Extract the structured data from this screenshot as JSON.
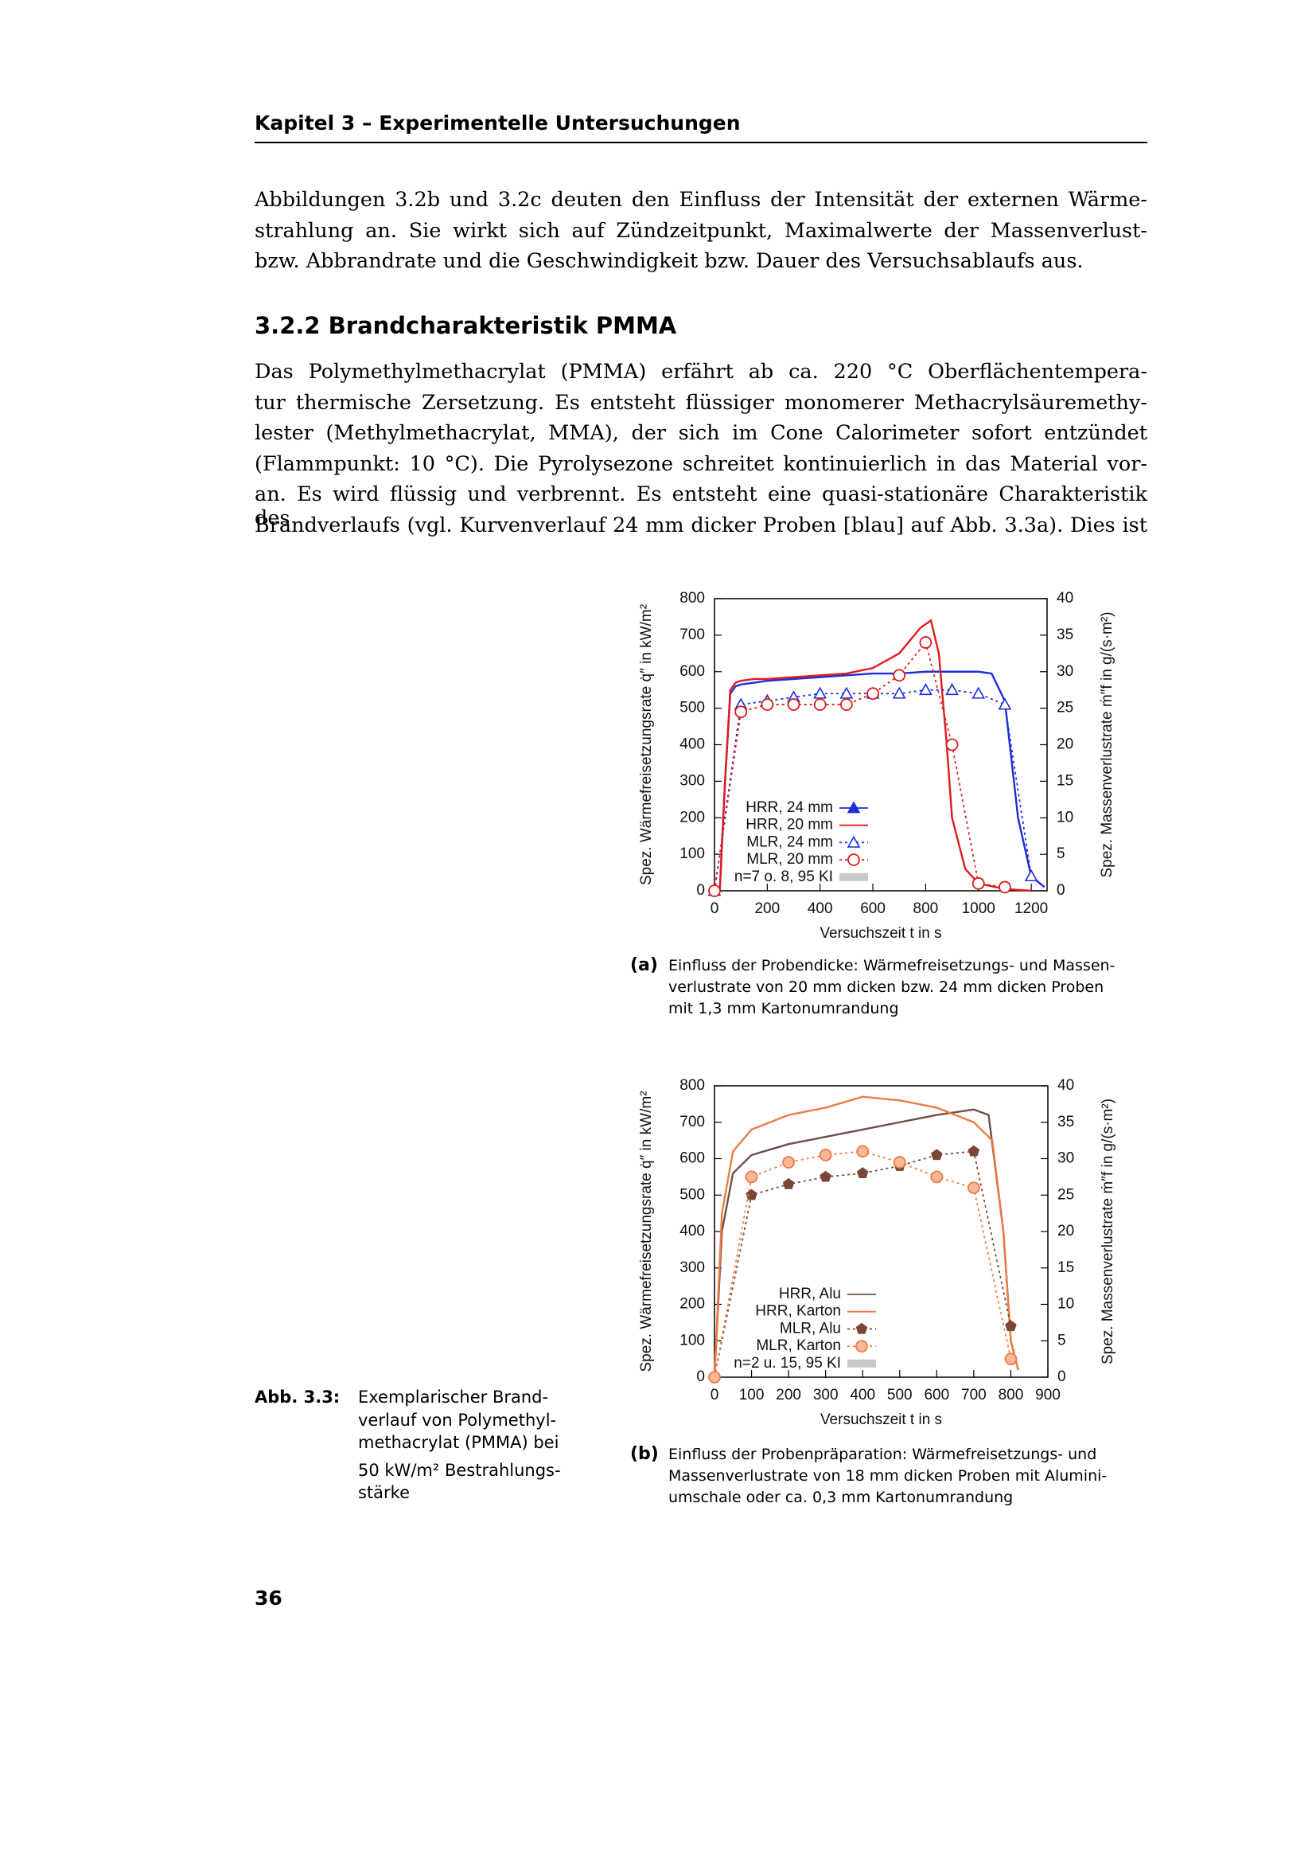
{
  "header": {
    "title": "Kapitel 3 – Experimentelle Untersuchungen"
  },
  "paragraph_1": [
    "Abbildungen 3.2b und 3.2c deuten den Einfluss der Intensität der externen Wärme-",
    "strahlung an. Sie wirkt sich auf Zündzeitpunkt, Maximalwerte der Massenverlust-",
    "bzw. Abbrandrate und die Geschwindigkeit bzw. Dauer des Versuchsablaufs aus."
  ],
  "section": {
    "title": "3.2.2 Brandcharakteristik PMMA"
  },
  "paragraph_2": [
    "Das Polymethylmethacrylat (PMMA) erfährt ab ca. 220 °C Oberflächentempera-",
    "tur thermische Zersetzung. Es entsteht flüssiger monomerer Methacrylsäuremethy-",
    "lester (Methylmethacrylat, MMA), der sich im Cone Calorimeter sofort entzündet",
    "(Flammpunkt: 10 °C). Die Pyrolysezone schreitet kontinuierlich in das Material vor-",
    "an. Es wird flüssig und verbrennt. Es entsteht eine quasi-stationäre Charakteristik des",
    "Brandverlaufs (vgl. Kurvenverlauf 24 mm dicker Proben [blau] auf Abb. 3.3a). Dies ist"
  ],
  "chart_data": [
    {
      "type": "line",
      "y_label": "Spez. Wärmefreisetzungsrate q̇″ in kW/m²",
      "y2_label": "Spez. Massenverlustrate ṁ″f in g/(s·m²)",
      "x_label": "Versuchszeit t in s",
      "xlim": [
        0,
        1260
      ],
      "xticks": [
        0,
        200,
        400,
        600,
        800,
        1000,
        1200
      ],
      "ylim": [
        0,
        800
      ],
      "yticks": [
        0,
        100,
        200,
        300,
        400,
        500,
        600,
        700,
        800
      ],
      "y2lim": [
        0,
        40
      ],
      "y2ticks": [
        0,
        5,
        10,
        15,
        20,
        25,
        30,
        35,
        40
      ],
      "legend": "lower left",
      "ci_label": "n=7 o. 8, 95 KI",
      "ci_color": "#c8c8c8",
      "series": [
        {
          "name": "HRR, 24 mm",
          "color": "#1a2ed8",
          "line_style": "solid",
          "marker": "triangle-filled",
          "legend_marker": true,
          "x": [
            0,
            20,
            40,
            60,
            80,
            100,
            150,
            200,
            300,
            400,
            500,
            600,
            700,
            800,
            900,
            1000,
            1050,
            1100,
            1150,
            1200,
            1250
          ],
          "values": [
            0,
            0,
            300,
            540,
            560,
            565,
            570,
            575,
            580,
            585,
            590,
            595,
            595,
            600,
            600,
            600,
            595,
            520,
            200,
            40,
            10
          ]
        },
        {
          "name": "HRR, 20 mm",
          "color": "#e01b1b",
          "line_style": "solid",
          "marker": "none",
          "x": [
            0,
            20,
            40,
            60,
            80,
            100,
            150,
            200,
            300,
            400,
            500,
            600,
            700,
            780,
            820,
            850,
            880,
            900,
            950,
            1000,
            1100,
            1200
          ],
          "values": [
            0,
            0,
            300,
            550,
            570,
            575,
            580,
            580,
            585,
            590,
            595,
            610,
            650,
            720,
            740,
            650,
            400,
            200,
            60,
            20,
            5,
            0
          ]
        },
        {
          "name": "MLR, 24 mm",
          "color": "#1a2ed8",
          "axis": "y2",
          "line_style": "dotted",
          "marker": "triangle-open",
          "x": [
            0,
            100,
            200,
            300,
            400,
            500,
            600,
            700,
            800,
            900,
            1000,
            1100,
            1200
          ],
          "values": [
            0,
            25.5,
            26,
            26.5,
            27,
            27,
            27,
            27,
            27.5,
            27.5,
            27,
            25.5,
            2
          ]
        },
        {
          "name": "MLR, 20 mm",
          "color": "#e01b1b",
          "axis": "y2",
          "line_style": "dotted",
          "marker": "circle-open",
          "x": [
            0,
            100,
            200,
            300,
            400,
            500,
            600,
            700,
            800,
            900,
            1000,
            1100
          ],
          "values": [
            0,
            24.5,
            25.5,
            25.5,
            25.5,
            25.5,
            27,
            29.5,
            34,
            20,
            1,
            0.5
          ]
        }
      ]
    },
    {
      "type": "line",
      "y_label": "Spez. Wärmefreisetzungsrate q̇″ in kW/m²",
      "y2_label": "Spez. Massenverlustrate ṁ″f in g/(s·m²)",
      "x_label": "Versuchszeit t in s",
      "xlim": [
        0,
        900
      ],
      "xticks": [
        0,
        100,
        200,
        300,
        400,
        500,
        600,
        700,
        800,
        900
      ],
      "ylim": [
        0,
        800
      ],
      "yticks": [
        0,
        100,
        200,
        300,
        400,
        500,
        600,
        700,
        800
      ],
      "y2lim": [
        0,
        40
      ],
      "y2ticks": [
        0,
        5,
        10,
        15,
        20,
        25,
        30,
        35,
        40
      ],
      "legend": "lower left",
      "ci_label": "n=2 u. 15, 95 KI",
      "ci_color": "#c8c8c8",
      "series": [
        {
          "name": "HRR, Alu",
          "color": "#6e5148",
          "line_style": "solid",
          "marker": "none",
          "x": [
            0,
            20,
            50,
            100,
            200,
            300,
            400,
            500,
            600,
            700,
            740,
            780,
            800,
            820
          ],
          "values": [
            0,
            400,
            560,
            610,
            640,
            660,
            680,
            700,
            720,
            735,
            720,
            400,
            100,
            20
          ]
        },
        {
          "name": "HRR, Karton",
          "color": "#f07a45",
          "line_style": "solid",
          "marker": "none",
          "x": [
            0,
            20,
            50,
            100,
            200,
            300,
            400,
            500,
            600,
            700,
            750,
            780,
            800,
            820
          ],
          "values": [
            0,
            450,
            620,
            680,
            720,
            740,
            770,
            760,
            740,
            700,
            650,
            400,
            100,
            20
          ]
        },
        {
          "name": "MLR, Alu",
          "color": "#7a4636",
          "axis": "y2",
          "line_style": "dotted",
          "marker": "pentagon-filled",
          "x": [
            0,
            100,
            200,
            300,
            400,
            500,
            600,
            700,
            800
          ],
          "values": [
            0,
            25,
            26.5,
            27.5,
            28,
            29,
            30.5,
            31,
            7
          ]
        },
        {
          "name": "MLR, Karton",
          "color": "#f07a45",
          "axis": "y2",
          "line_style": "dotted",
          "marker": "circle-filled",
          "x": [
            0,
            100,
            200,
            300,
            400,
            500,
            600,
            700,
            800
          ],
          "values": [
            0,
            27.5,
            29.5,
            30.5,
            31,
            29.5,
            27.5,
            26,
            2.5
          ]
        }
      ]
    }
  ],
  "caption_a": {
    "label": "(a)",
    "lines": [
      "Einfluss der Probendicke: Wärmefreisetzungs- und Massen-",
      "verlustrate von 20 mm dicken bzw. 24 mm dicken Proben",
      "mit 1,3 mm Kartonumrandung"
    ]
  },
  "caption_b": {
    "label": "(b)",
    "lines": [
      "Einfluss der Probenpräparation: Wärmefreisetzungs- und",
      "Massenverlustrate von 18 mm dicken Proben mit Alumini-",
      "umschale oder ca. 0,3 mm Kartonumrandung"
    ]
  },
  "figure_caption": {
    "label": "Abb. 3.3:",
    "lines": [
      "Exemplarischer Brand-",
      "verlauf von Polymethyl-",
      "methacrylat (PMMA) bei",
      "50 kW/m² Bestrahlungs-",
      "stärke"
    ]
  },
  "page_number": "36"
}
